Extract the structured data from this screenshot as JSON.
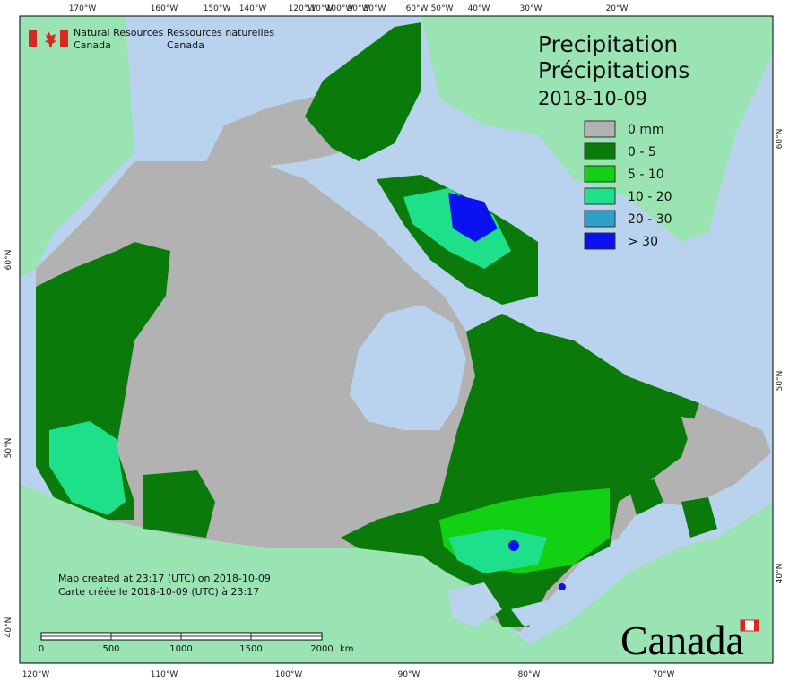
{
  "agency_en": [
    "Natural Resources",
    "Canada"
  ],
  "agency_fr": [
    "Ressources naturelles",
    "Canada"
  ],
  "title": [
    "Precipitation",
    "Précipitations"
  ],
  "date": "2018-10-09",
  "legend": [
    {
      "label": "0 mm",
      "color": "#b2b2b2"
    },
    {
      "label": "0 - 5",
      "color": "#0a7a0a"
    },
    {
      "label": "5 - 10",
      "color": "#12d012"
    },
    {
      "label": "10 - 20",
      "color": "#1fe08a"
    },
    {
      "label": "20 - 30",
      "color": "#2ba0c8"
    },
    {
      "label": "> 30",
      "color": "#0a12f0"
    }
  ],
  "graticule": {
    "top": [
      "170°W",
      "160°W",
      "150°W",
      "140°W",
      "120°W",
      "110°W",
      "100°W",
      "90°W",
      "80°W",
      "60°W",
      "50°W",
      "40°W",
      "30°W",
      "20°W"
    ],
    "bottom": [
      "120°W",
      "110°W",
      "100°W",
      "90°W",
      "80°W",
      "70°W"
    ],
    "left": [
      "60°N",
      "50°N",
      "40°N"
    ],
    "right": [
      "60°N",
      "50°N",
      "40°N"
    ]
  },
  "notes": [
    "Map created at 23:17 (UTC) on 2018-10-09",
    "Carte créée le 2018-10-09 (UTC) à 23:17"
  ],
  "scale_bar": {
    "labels": [
      "0",
      "500",
      "1000",
      "1500",
      "2000"
    ],
    "unit": "km"
  },
  "wordmark": "Canada"
}
